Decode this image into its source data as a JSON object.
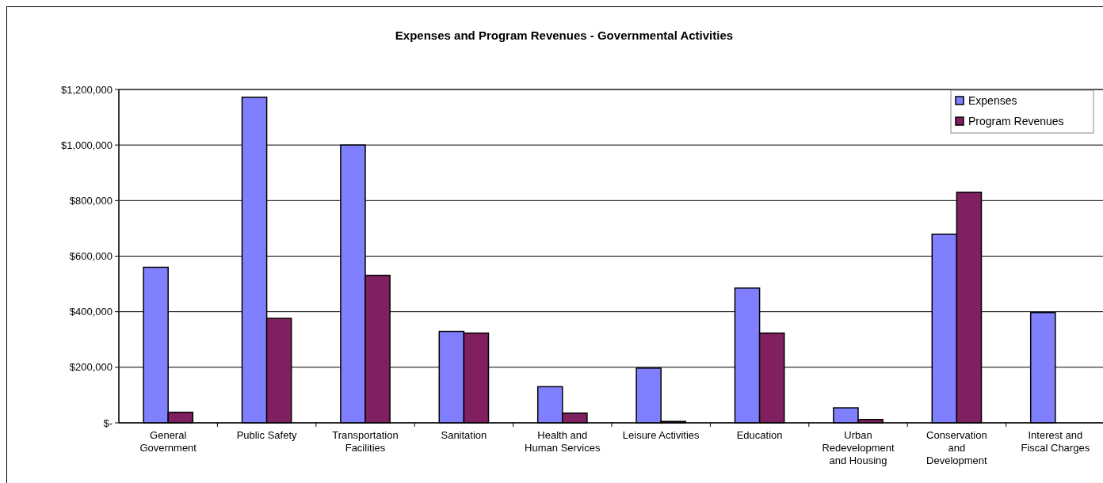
{
  "chart_data": {
    "type": "bar",
    "title": "Expenses and Program Revenues - Governmental Activities",
    "categories": [
      "General Government",
      "Public Safety",
      "Transportation Facilities",
      "Sanitation",
      "Health and Human Services",
      "Leisure Activities",
      "Education",
      "Urban Redevelopment and Housing",
      "Conservation and Development",
      "Interest and Fiscal Charges"
    ],
    "series": [
      {
        "name": "Expenses",
        "color": "#8080ff",
        "values": [
          560000,
          1172000,
          1000000,
          329000,
          130000,
          197000,
          485000,
          54000,
          679000,
          397000
        ]
      },
      {
        "name": "Program Revenues",
        "color": "#802060",
        "values": [
          38000,
          376000,
          531000,
          323000,
          35000,
          5000,
          323000,
          12000,
          830000,
          null
        ]
      }
    ],
    "ylim": [
      0,
      1200000
    ],
    "yticks": [
      {
        "value": 0,
        "label": "$-"
      },
      {
        "value": 200000,
        "label": "$200,000"
      },
      {
        "value": 400000,
        "label": "$400,000"
      },
      {
        "value": 600000,
        "label": "$600,000"
      },
      {
        "value": 800000,
        "label": "$800,000"
      },
      {
        "value": 1000000,
        "label": "$1,000,000"
      },
      {
        "value": 1200000,
        "label": "$1,200,000"
      }
    ],
    "grid": "y",
    "legend": "top right"
  }
}
